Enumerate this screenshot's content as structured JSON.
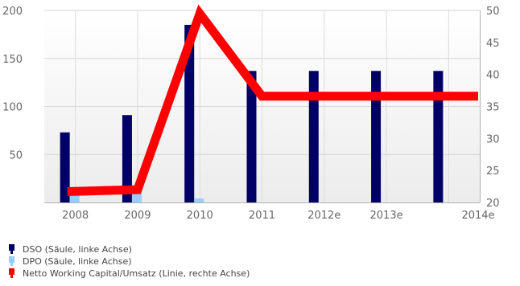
{
  "chart_data": {
    "type": "bar",
    "categories": [
      "2008",
      "2009",
      "2010",
      "2011",
      "2012e",
      "2013e",
      "2014e"
    ],
    "series": [
      {
        "name": "DSO (Säule, linke Achse)",
        "kind": "bar",
        "axis": "left",
        "color": "#000066",
        "values": [
          73,
          91,
          185,
          137,
          137,
          137,
          137
        ]
      },
      {
        "name": "DPO (Säule, linke Achse)",
        "kind": "bar",
        "axis": "left",
        "color": "#99ccff",
        "values": [
          10,
          10,
          4,
          0,
          0,
          0,
          0
        ]
      },
      {
        "name": "Netto Working Capital/Umsatz (Linie, rechte Achse)",
        "kind": "line",
        "axis": "right",
        "color": "#ff0000",
        "values": [
          21.7,
          22.0,
          49.5,
          36.6,
          36.6,
          36.6,
          36.6
        ]
      }
    ],
    "left_axis": {
      "ylim": [
        0,
        200
      ],
      "ticks": [
        "50",
        "100",
        "150",
        "200"
      ]
    },
    "right_axis": {
      "ylim": [
        20,
        50
      ],
      "ticks": [
        "20",
        "25",
        "30",
        "35",
        "40",
        "45",
        "50"
      ]
    },
    "grid": true,
    "legend_position": "bottom-left"
  }
}
